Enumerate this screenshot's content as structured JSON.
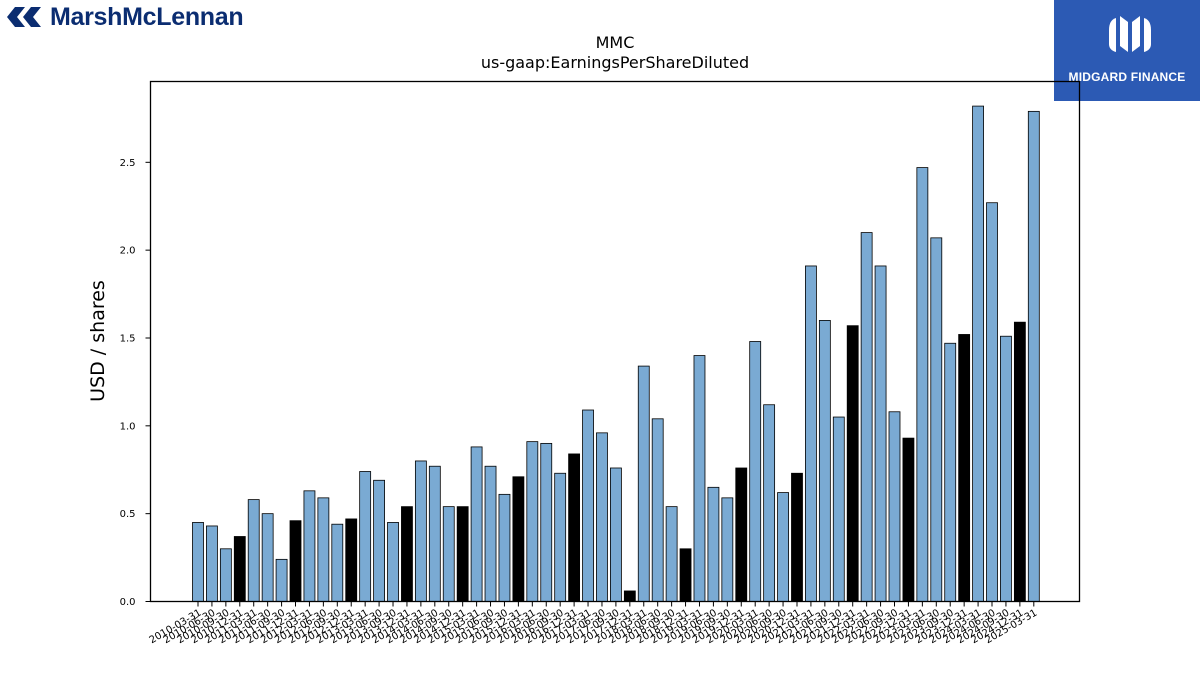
{
  "header": {
    "left_logo_text": "MarshMcLennan",
    "right_logo_text": "MIDGARD FINANCE",
    "left_brand_color": "#0b2d71",
    "right_brand_color": "#2c5ab4"
  },
  "chart_data": {
    "type": "bar",
    "title": "MMC",
    "subtitle": "us-gaap:EarningsPerShareDiluted",
    "xlabel": "",
    "ylabel": "USD / shares",
    "ylim": [
      0,
      2.96
    ],
    "yticks": [
      "0.0",
      "0.5",
      "1.0",
      "1.5",
      "2.0",
      "2.5"
    ],
    "grid": false,
    "colors": {
      "quarter": "#7aaad3",
      "annual": "#000000",
      "edge": "#000000"
    },
    "categories": [
      "2010-03-31",
      "2010-06-30",
      "2010-09-30",
      "2010-12-31",
      "2011-03-31",
      "2011-06-30",
      "2011-09-30",
      "2011-12-31",
      "2012-03-31",
      "2012-06-30",
      "2012-09-30",
      "2012-12-31",
      "2013-03-31",
      "2013-06-30",
      "2013-09-30",
      "2013-12-31",
      "2014-03-31",
      "2014-06-30",
      "2014-09-30",
      "2014-12-31",
      "2015-03-31",
      "2015-06-30",
      "2015-09-30",
      "2015-12-31",
      "2016-03-31",
      "2016-06-30",
      "2016-09-30",
      "2016-12-31",
      "2017-03-31",
      "2017-06-30",
      "2017-09-30",
      "2017-12-31",
      "2018-03-31",
      "2018-06-30",
      "2018-09-30",
      "2018-12-31",
      "2019-03-31",
      "2019-06-30",
      "2019-09-30",
      "2019-12-31",
      "2020-03-31",
      "2020-06-30",
      "2020-09-30",
      "2020-12-31",
      "2021-03-31",
      "2021-06-30",
      "2021-09-30",
      "2021-12-31",
      "2022-03-31",
      "2022-06-30",
      "2022-09-30",
      "2022-12-31",
      "2023-03-31",
      "2023-06-30",
      "2023-09-30",
      "2023-12-31",
      "2024-03-31",
      "2024-06-30",
      "2024-09-30",
      "2024-12-31",
      "2025-03-31"
    ],
    "values": [
      0.45,
      0.43,
      0.3,
      0.37,
      0.58,
      0.5,
      0.24,
      0.46,
      0.63,
      0.59,
      0.44,
      0.47,
      0.74,
      0.69,
      0.45,
      0.54,
      0.8,
      0.77,
      0.54,
      0.54,
      0.88,
      0.77,
      0.61,
      0.71,
      0.91,
      0.9,
      0.73,
      0.84,
      1.09,
      0.96,
      0.76,
      0.06,
      1.34,
      1.04,
      0.54,
      0.3,
      1.4,
      0.65,
      0.59,
      0.76,
      1.48,
      1.12,
      0.62,
      0.73,
      1.91,
      1.6,
      1.05,
      1.57,
      2.1,
      1.91,
      1.08,
      0.93,
      2.47,
      2.07,
      1.47,
      1.52,
      2.82,
      2.27,
      1.51,
      1.59,
      2.79
    ],
    "annual": [
      false,
      false,
      false,
      true,
      false,
      false,
      false,
      true,
      false,
      false,
      false,
      true,
      false,
      false,
      false,
      true,
      false,
      false,
      false,
      true,
      false,
      false,
      false,
      true,
      false,
      false,
      false,
      true,
      false,
      false,
      false,
      true,
      false,
      false,
      false,
      true,
      false,
      false,
      false,
      true,
      false,
      false,
      false,
      true,
      false,
      false,
      false,
      true,
      false,
      false,
      false,
      true,
      false,
      false,
      false,
      true,
      false,
      false,
      false,
      true,
      false
    ]
  }
}
